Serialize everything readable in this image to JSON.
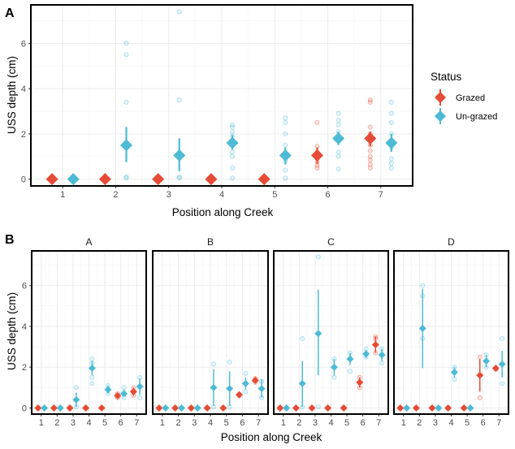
{
  "colors": {
    "grazed": "#E64B35",
    "ungrazed": "#4DBBD5",
    "grid": "#ebebeb",
    "panel_border": "#000000"
  },
  "legend": {
    "title": "Status",
    "items": [
      "Grazed",
      "Un-grazed"
    ]
  },
  "chart_data": [
    {
      "type": "scatter",
      "panel_tag": "A",
      "xlabel": "Position along Creek",
      "ylabel": "USS depth (cm)",
      "x_categories": [
        "1",
        "2",
        "3",
        "4",
        "5",
        "6",
        "7"
      ],
      "y_ticks": [
        0,
        2,
        4,
        6
      ],
      "ylim": [
        -0.3,
        7.7
      ],
      "grid": true,
      "legend_position": "right",
      "series": [
        {
          "name": "Grazed",
          "summary": [
            {
              "x": "1",
              "mean": 0,
              "low": 0,
              "high": 0
            },
            {
              "x": "2",
              "mean": 0,
              "low": 0,
              "high": 0
            },
            {
              "x": "3",
              "mean": 0,
              "low": 0,
              "high": 0
            },
            {
              "x": "4",
              "mean": 0,
              "low": 0,
              "high": 0
            },
            {
              "x": "5",
              "mean": 0,
              "low": 0,
              "high": 0
            },
            {
              "x": "6",
              "mean": 1.05,
              "low": 0.7,
              "high": 1.4
            },
            {
              "x": "7",
              "mean": 1.8,
              "low": 1.45,
              "high": 2.1
            }
          ],
          "raw": [
            {
              "x": "6",
              "values": [
                0.5,
                0.6,
                0.75,
                0.9,
                1.0,
                1.2,
                1.45,
                2.5
              ]
            },
            {
              "x": "7",
              "values": [
                0.5,
                0.65,
                0.85,
                1.0,
                1.25,
                1.5,
                2.0,
                2.3,
                3.4,
                3.5
              ]
            }
          ]
        },
        {
          "name": "Un-grazed",
          "summary": [
            {
              "x": "1",
              "mean": 0,
              "low": 0,
              "high": 0
            },
            {
              "x": "2",
              "mean": 1.5,
              "low": 0.75,
              "high": 2.3
            },
            {
              "x": "3",
              "mean": 1.05,
              "low": 0.35,
              "high": 1.8
            },
            {
              "x": "4",
              "mean": 1.6,
              "low": 1.3,
              "high": 1.95
            },
            {
              "x": "5",
              "mean": 1.05,
              "low": 0.65,
              "high": 1.4
            },
            {
              "x": "6",
              "mean": 1.8,
              "low": 1.5,
              "high": 2.1
            },
            {
              "x": "7",
              "mean": 1.6,
              "low": 1.2,
              "high": 2.0
            }
          ],
          "raw": [
            {
              "x": "1",
              "values": [
                0,
                0,
                0,
                0
              ]
            },
            {
              "x": "2",
              "values": [
                0.05,
                0.1,
                3.4,
                5.5,
                6.0
              ]
            },
            {
              "x": "3",
              "values": [
                0.05,
                0.1,
                3.5,
                7.4
              ]
            },
            {
              "x": "4",
              "values": [
                0.05,
                0.5,
                1.0,
                1.2,
                1.5,
                1.7,
                1.9,
                2.1,
                2.3,
                2.4
              ]
            },
            {
              "x": "5",
              "values": [
                0.05,
                0.4,
                0.8,
                1.1,
                1.5,
                2.0,
                2.5,
                2.7
              ]
            },
            {
              "x": "6",
              "values": [
                0.45,
                1.0,
                1.2,
                1.7,
                1.9,
                2.1,
                2.4,
                2.6,
                2.9
              ]
            },
            {
              "x": "7",
              "values": [
                0.5,
                0.7,
                0.9,
                1.4,
                1.6,
                2.0,
                2.5,
                2.9,
                3.4
              ]
            }
          ]
        }
      ]
    },
    {
      "type": "scatter",
      "panel_tag": "B",
      "xlabel": "Position along Creek",
      "ylabel": "USS depth (cm)",
      "x_categories": [
        "1",
        "2",
        "3",
        "4",
        "5",
        "6",
        "7"
      ],
      "y_ticks": [
        0,
        2,
        4,
        6
      ],
      "ylim": [
        -0.3,
        7.7
      ],
      "grid": true,
      "facets": [
        {
          "label": "A",
          "grazed": [
            {
              "x": "1",
              "mean": 0,
              "low": 0,
              "high": 0,
              "raw": []
            },
            {
              "x": "2",
              "mean": 0,
              "low": 0,
              "high": 0,
              "raw": []
            },
            {
              "x": "3",
              "mean": 0,
              "low": 0,
              "high": 0,
              "raw": []
            },
            {
              "x": "4",
              "mean": 0,
              "low": 0,
              "high": 0,
              "raw": []
            },
            {
              "x": "5",
              "mean": 0,
              "low": 0,
              "high": 0,
              "raw": []
            },
            {
              "x": "6",
              "mean": 0.6,
              "low": 0.5,
              "high": 0.7,
              "raw": [
                0.5,
                0.7
              ]
            },
            {
              "x": "7",
              "mean": 0.8,
              "low": 0.6,
              "high": 1.0,
              "raw": [
                0.6,
                1.0
              ]
            }
          ],
          "ungrazed": [
            {
              "x": "1",
              "mean": 0,
              "low": 0,
              "high": 0,
              "raw": []
            },
            {
              "x": "2",
              "mean": 0,
              "low": 0,
              "high": 0,
              "raw": []
            },
            {
              "x": "3",
              "mean": 0.4,
              "low": 0.05,
              "high": 0.75,
              "raw": [
                0.05,
                1.0
              ]
            },
            {
              "x": "4",
              "mean": 1.95,
              "low": 1.6,
              "high": 2.3,
              "raw": [
                1.2,
                1.5,
                2.2,
                2.4
              ]
            },
            {
              "x": "5",
              "mean": 0.9,
              "low": 0.7,
              "high": 1.1,
              "raw": [
                0.7,
                1.1
              ]
            },
            {
              "x": "6",
              "mean": 0.7,
              "low": 0.55,
              "high": 0.9,
              "raw": [
                0.5,
                1.0
              ]
            },
            {
              "x": "7",
              "mean": 1.05,
              "low": 0.65,
              "high": 1.45,
              "raw": [
                0.5,
                1.5
              ]
            }
          ]
        },
        {
          "label": "B",
          "grazed": [
            {
              "x": "1",
              "mean": 0,
              "low": 0,
              "high": 0,
              "raw": []
            },
            {
              "x": "2",
              "mean": 0,
              "low": 0,
              "high": 0,
              "raw": []
            },
            {
              "x": "3",
              "mean": 0,
              "low": 0,
              "high": 0,
              "raw": []
            },
            {
              "x": "4",
              "mean": 0,
              "low": 0,
              "high": 0,
              "raw": []
            },
            {
              "x": "5",
              "mean": 0,
              "low": 0,
              "high": 0,
              "raw": []
            },
            {
              "x": "6",
              "mean": 0.65,
              "low": 0.55,
              "high": 0.75,
              "raw": [
                0.6
              ]
            },
            {
              "x": "7",
              "mean": 1.35,
              "low": 1.2,
              "high": 1.5,
              "raw": [
                1.25,
                1.45
              ]
            }
          ],
          "ungrazed": [
            {
              "x": "1",
              "mean": 0,
              "low": 0,
              "high": 0,
              "raw": []
            },
            {
              "x": "2",
              "mean": 0,
              "low": 0,
              "high": 0,
              "raw": []
            },
            {
              "x": "3",
              "mean": 0,
              "low": 0,
              "high": 0,
              "raw": []
            },
            {
              "x": "4",
              "mean": 1.0,
              "low": 0.1,
              "high": 1.9,
              "raw": [
                0.05,
                2.15
              ]
            },
            {
              "x": "5",
              "mean": 0.95,
              "low": 0.1,
              "high": 1.8,
              "raw": [
                0.05,
                2.25
              ]
            },
            {
              "x": "6",
              "mean": 1.2,
              "low": 0.9,
              "high": 1.5,
              "raw": [
                0.8,
                1.7
              ]
            },
            {
              "x": "7",
              "mean": 0.95,
              "low": 0.5,
              "high": 1.4,
              "raw": [
                0.5,
                1.3
              ]
            }
          ]
        },
        {
          "label": "C",
          "grazed": [
            {
              "x": "1",
              "mean": 0,
              "low": 0,
              "high": 0,
              "raw": []
            },
            {
              "x": "2",
              "mean": 0,
              "low": 0,
              "high": 0,
              "raw": []
            },
            {
              "x": "3",
              "mean": 0,
              "low": 0,
              "high": 0,
              "raw": []
            },
            {
              "x": "4",
              "mean": 0,
              "low": 0,
              "high": 0,
              "raw": []
            },
            {
              "x": "5",
              "mean": 0,
              "low": 0,
              "high": 0,
              "raw": []
            },
            {
              "x": "6",
              "mean": 1.25,
              "low": 1.0,
              "high": 1.5,
              "raw": [
                1.0,
                1.5
              ]
            },
            {
              "x": "7",
              "mean": 3.1,
              "low": 2.7,
              "high": 3.5,
              "raw": [
                2.7,
                3.4,
                3.5
              ]
            }
          ],
          "ungrazed": [
            {
              "x": "1",
              "mean": 0,
              "low": 0,
              "high": 0,
              "raw": []
            },
            {
              "x": "2",
              "mean": 1.2,
              "low": 0.05,
              "high": 2.3,
              "raw": [
                0.05,
                3.4
              ]
            },
            {
              "x": "3",
              "mean": 3.65,
              "low": 1.6,
              "high": 5.8,
              "raw": [
                0.05,
                7.4
              ]
            },
            {
              "x": "4",
              "mean": 2.0,
              "low": 1.6,
              "high": 2.4,
              "raw": [
                1.5,
                2.4
              ]
            },
            {
              "x": "5",
              "mean": 2.4,
              "low": 2.1,
              "high": 2.7,
              "raw": [
                1.8,
                2.7
              ]
            },
            {
              "x": "6",
              "mean": 2.65,
              "low": 2.45,
              "high": 2.85,
              "raw": [
                2.5,
                2.9
              ]
            },
            {
              "x": "7",
              "mean": 2.6,
              "low": 2.3,
              "high": 2.9,
              "raw": [
                2.2,
                2.9
              ]
            }
          ]
        },
        {
          "label": "D",
          "grazed": [
            {
              "x": "1",
              "mean": 0,
              "low": 0,
              "high": 0,
              "raw": []
            },
            {
              "x": "2",
              "mean": 0,
              "low": 0,
              "high": 0,
              "raw": []
            },
            {
              "x": "3",
              "mean": 0,
              "low": 0,
              "high": 0,
              "raw": []
            },
            {
              "x": "4",
              "mean": 0,
              "low": 0,
              "high": 0,
              "raw": []
            },
            {
              "x": "5",
              "mean": 0,
              "low": 0,
              "high": 0,
              "raw": []
            },
            {
              "x": "6",
              "mean": 1.6,
              "low": 0.8,
              "high": 2.4,
              "raw": [
                0.5,
                2.5
              ]
            },
            {
              "x": "7",
              "mean": 1.95,
              "low": 1.85,
              "high": 2.05,
              "raw": [
                1.9
              ]
            }
          ],
          "ungrazed": [
            {
              "x": "1",
              "mean": 0,
              "low": 0,
              "high": 0,
              "raw": []
            },
            {
              "x": "2",
              "mean": 3.9,
              "low": 1.95,
              "high": 5.85,
              "raw": [
                3.4,
                5.5,
                6.0
              ]
            },
            {
              "x": "3",
              "mean": 0,
              "low": 0,
              "high": 0,
              "raw": []
            },
            {
              "x": "4",
              "mean": 1.75,
              "low": 1.5,
              "high": 2.0,
              "raw": [
                1.4,
                2.0
              ]
            },
            {
              "x": "5",
              "mean": 0,
              "low": 0,
              "high": 0,
              "raw": []
            },
            {
              "x": "6",
              "mean": 2.3,
              "low": 2.0,
              "high": 2.6,
              "raw": [
                2.0,
                2.6
              ]
            },
            {
              "x": "7",
              "mean": 2.15,
              "low": 1.5,
              "high": 2.8,
              "raw": [
                1.2,
                3.4
              ]
            }
          ]
        }
      ]
    }
  ]
}
